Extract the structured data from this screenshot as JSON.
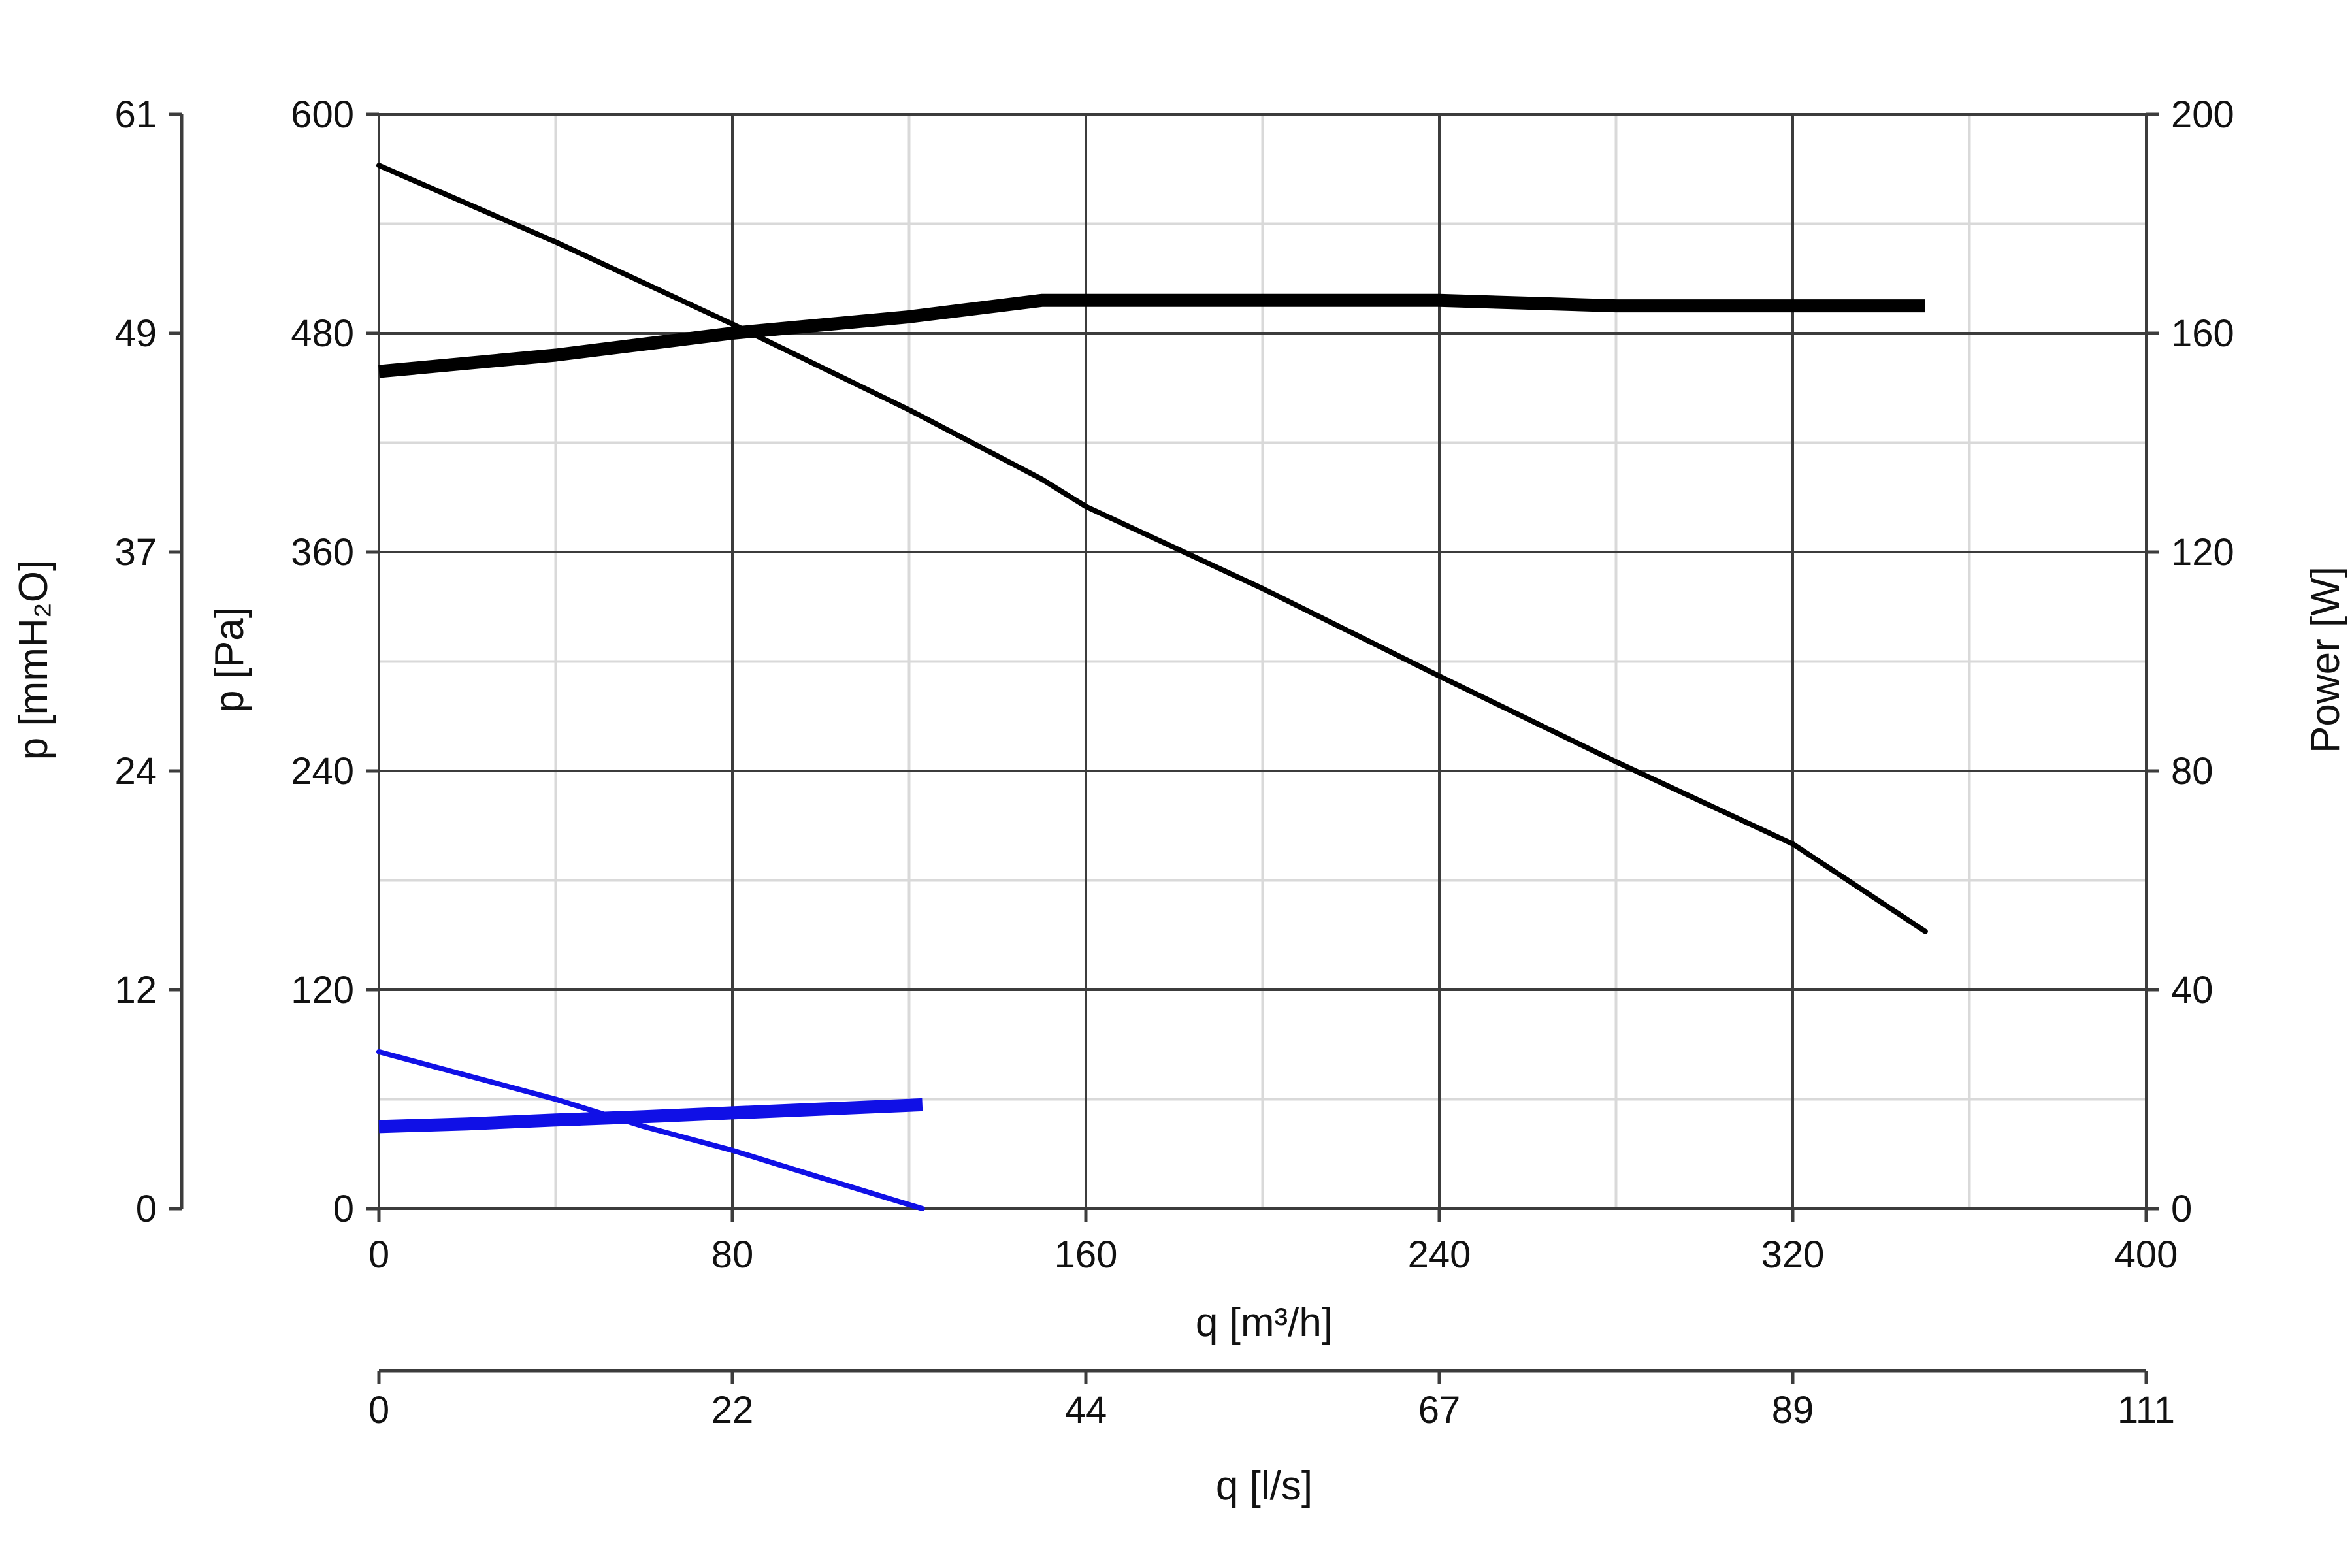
{
  "chart_data": {
    "type": "line",
    "x_axis": {
      "label": "q [m³/h]",
      "ticks": [
        "0",
        "80",
        "160",
        "240",
        "320",
        "400"
      ],
      "range": [
        0,
        400
      ]
    },
    "x_axis_secondary": {
      "label": "q [l/s]",
      "ticks": [
        "0",
        "22",
        "44",
        "67",
        "89",
        "111"
      ]
    },
    "y_axis": {
      "label": "p [Pa]",
      "ticks": [
        "0",
        "120",
        "240",
        "360",
        "480",
        "600"
      ],
      "range": [
        0,
        600
      ]
    },
    "y_axis_secondary_left": {
      "label": "p [mmH₂O]",
      "ticks": [
        "0",
        "12",
        "24",
        "37",
        "49",
        "61"
      ]
    },
    "y_axis_right": {
      "label": "Power [W]",
      "ticks": [
        "0",
        "40",
        "80",
        "120",
        "160",
        "200"
      ],
      "range": [
        0,
        200
      ]
    },
    "grid": true,
    "series": [
      {
        "axis": "pressure",
        "color": "#000000",
        "style": "thin",
        "points": [
          [
            0,
            572
          ],
          [
            40,
            530
          ],
          [
            80,
            485
          ],
          [
            120,
            438
          ],
          [
            150,
            400
          ],
          [
            160,
            385
          ],
          [
            200,
            340
          ],
          [
            240,
            292
          ],
          [
            280,
            245
          ],
          [
            320,
            200
          ],
          [
            350,
            152
          ]
        ]
      },
      {
        "axis": "power",
        "color": "#000000",
        "style": "thick",
        "points": [
          [
            0,
            153
          ],
          [
            40,
            156
          ],
          [
            80,
            160
          ],
          [
            120,
            163
          ],
          [
            150,
            166
          ],
          [
            160,
            166
          ],
          [
            200,
            166
          ],
          [
            240,
            166
          ],
          [
            280,
            165
          ],
          [
            320,
            165
          ],
          [
            350,
            165
          ]
        ]
      },
      {
        "axis": "pressure",
        "color": "#1010e6",
        "style": "thin",
        "points": [
          [
            0,
            86
          ],
          [
            20,
            73
          ],
          [
            40,
            60
          ],
          [
            60,
            45
          ],
          [
            80,
            32
          ],
          [
            100,
            17
          ],
          [
            123,
            0
          ]
        ]
      },
      {
        "axis": "power",
        "color": "#1010e6",
        "style": "thick",
        "points": [
          [
            0,
            15
          ],
          [
            20,
            15.5
          ],
          [
            40,
            16.2
          ],
          [
            60,
            16.8
          ],
          [
            80,
            17.5
          ],
          [
            100,
            18.2
          ],
          [
            123,
            19
          ]
        ]
      }
    ]
  }
}
